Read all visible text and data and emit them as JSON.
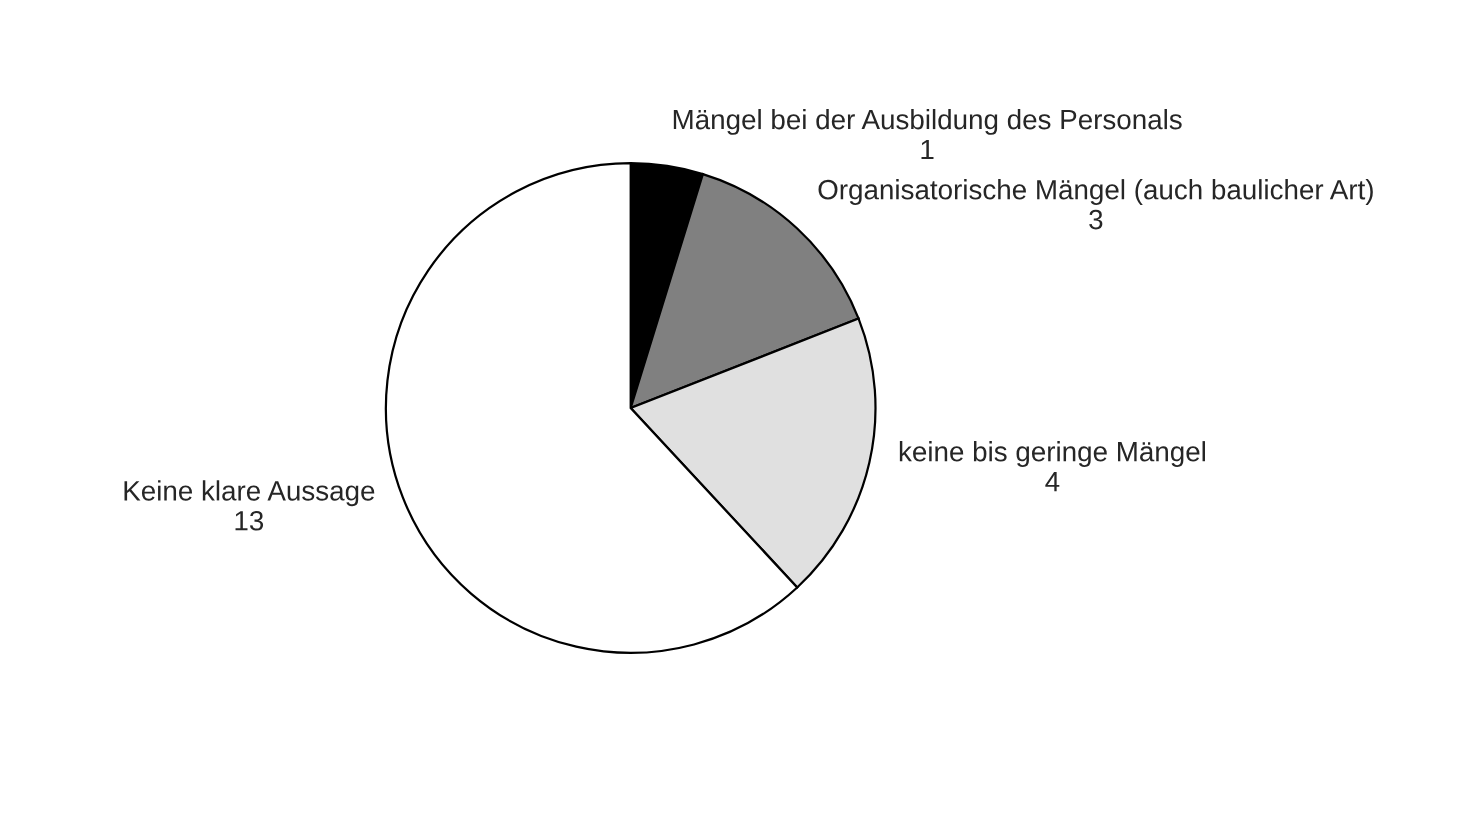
{
  "chart_data": {
    "type": "pie",
    "categories": [
      "Mängel bei der Ausbildung des Personals",
      "Organisatorische Mängel (auch baulicher Art)",
      "keine bis geringe Mängel",
      "Keine klare Aussage"
    ],
    "values": [
      1,
      3,
      4,
      13
    ],
    "colors": [
      "#000000",
      "#808080",
      "#e0e0e0",
      "#ffffff"
    ],
    "data_labels": true
  }
}
